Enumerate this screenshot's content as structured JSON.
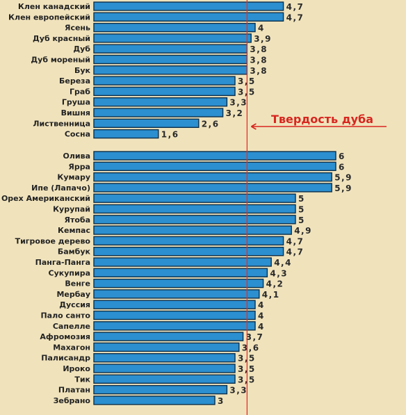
{
  "chart_data": {
    "type": "bar",
    "orientation": "horizontal",
    "groups": [
      {
        "categories": [
          "Клен канадский",
          "Клен европейский",
          "Ясень",
          "Дуб красный",
          "Дуб",
          "Дуб мореный",
          "Бук",
          "Береза",
          "Граб",
          "Груша",
          "Вишня",
          "Лиственница",
          "Сосна"
        ],
        "values": [
          4.7,
          4.7,
          4,
          3.9,
          3.8,
          3.8,
          3.8,
          3.5,
          3.5,
          3.3,
          3.2,
          2.6,
          1.6
        ],
        "value_labels": [
          "4,7",
          "4,7",
          "4",
          "3,9",
          "3,8",
          "3,8",
          "3,8",
          "3,5",
          "3,5",
          "3,3",
          "3,2",
          "2,6",
          "1,6"
        ]
      },
      {
        "categories": [
          "Олива",
          "Ярра",
          "Кумару",
          "Ипе (Лапачо)",
          "Орех Американский",
          "Курупай",
          "Ятоба",
          "Кемпас",
          "Тигровое дерево",
          "Бамбук",
          "Панга-Панга",
          "Сукупира",
          "Венге",
          "Мербау",
          "Дуссия",
          "Пало санто",
          "Сапелле",
          "Афромозия",
          "Махагон",
          "Палисандр",
          "Ироко",
          "Тик",
          "Платан",
          "Зебрано"
        ],
        "values": [
          6,
          6,
          5.9,
          5.9,
          5,
          5,
          5,
          4.9,
          4.7,
          4.7,
          4.4,
          4.3,
          4.2,
          4.1,
          4,
          4,
          4,
          3.7,
          3.6,
          3.5,
          3.5,
          3.5,
          3.3,
          3
        ],
        "value_labels": [
          "6",
          "6",
          "5,9",
          "5,9",
          "5",
          "5",
          "5",
          "4,9",
          "4,7",
          "4,7",
          "4,4",
          "4,3",
          "4,2",
          "4,1",
          "4",
          "4",
          "4",
          "3,7",
          "3,6",
          "3,5",
          "3,5",
          "3,5",
          "3,3",
          "3"
        ]
      }
    ],
    "xlim": [
      0,
      6
    ],
    "reference_line": {
      "value": 3.8,
      "label": "Твердость дуба"
    },
    "colors": {
      "bar": "#2b8fd0",
      "bar_border": "#0d2f4a",
      "reference": "#e0302a",
      "background": "#f0e3bc"
    },
    "grid": false,
    "legend": "none"
  }
}
